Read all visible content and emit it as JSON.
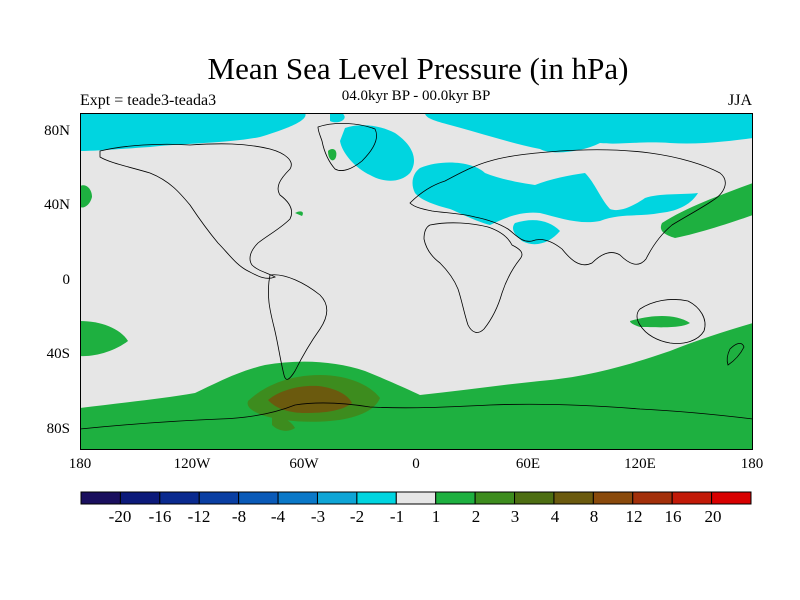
{
  "title": "Mean Sea Level Pressure (in hPa)",
  "subtitle": "04.0kyr BP - 00.0kyr BP",
  "left_label": "Expt = teade3-teada3",
  "right_label": "JJA",
  "lat_labels": [
    "80N",
    "40N",
    "0",
    "40S",
    "80S"
  ],
  "lon_labels": [
    "180",
    "120W",
    "60W",
    "0",
    "60E",
    "120E",
    "180"
  ],
  "colorbar": {
    "colors": [
      "#1a0f5e",
      "#0c1a7a",
      "#0a2a8f",
      "#0a3fa3",
      "#0a5ab8",
      "#0a78c8",
      "#0ea5d6",
      "#00d5e0",
      "#e6e6e6",
      "#1eb040",
      "#3d8c1e",
      "#4d6e12",
      "#6b5a0e",
      "#8a4a0c",
      "#a3300a",
      "#c21a08",
      "#d80000"
    ],
    "labels": [
      "-20",
      "-16",
      "-12",
      "-8",
      "-4",
      "-3",
      "-2",
      "-1",
      "1",
      "2",
      "3",
      "4",
      "8",
      "12",
      "16",
      "20"
    ]
  },
  "fill_colors": {
    "background": "#e6e6e6",
    "cyan": "#00d5e0",
    "green": "#1eb040",
    "olive": "#3d8c1e",
    "brown": "#6b5a0e"
  }
}
